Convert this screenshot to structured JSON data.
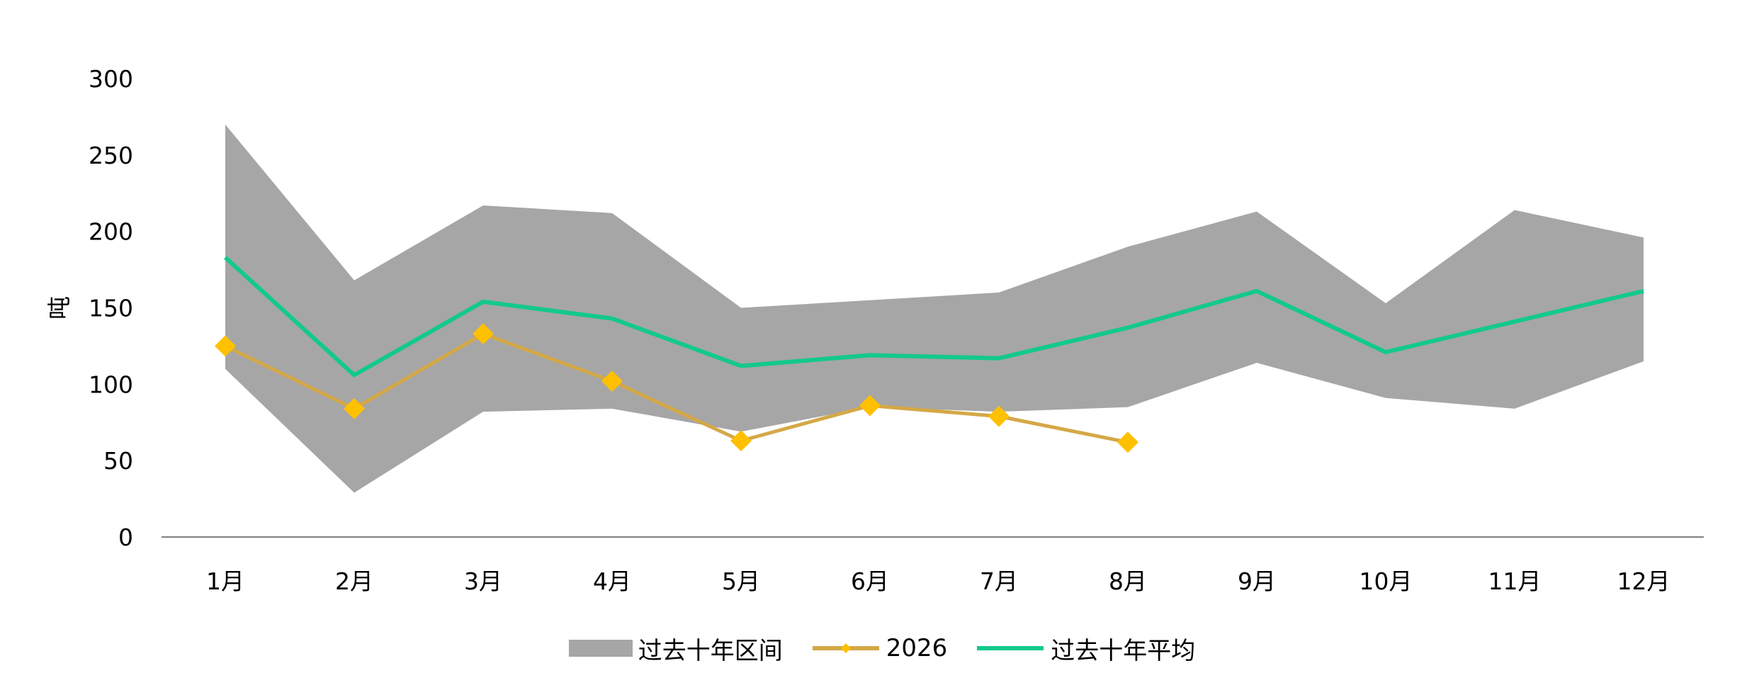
{
  "chart_data": {
    "type": "area",
    "title": "",
    "xlabel": "",
    "ylabel": "吨",
    "ylim": [
      0,
      300
    ],
    "yticks": [
      0,
      50,
      100,
      150,
      200,
      250,
      300
    ],
    "categories": [
      "1月",
      "2月",
      "3月",
      "4月",
      "5月",
      "6月",
      "7月",
      "8月",
      "9月",
      "10月",
      "11月",
      "12月"
    ],
    "series": [
      {
        "name": "过去十年区间",
        "kind": "band",
        "color": "#A6A6A6",
        "upper": [
          270,
          168,
          217,
          212,
          150,
          155,
          160,
          190,
          213,
          153,
          214,
          196
        ],
        "lower": [
          110,
          29,
          82,
          84,
          69,
          85,
          82,
          85,
          114,
          91,
          84,
          115
        ]
      },
      {
        "name": "2026",
        "kind": "line-marker",
        "color": "#D4A847",
        "marker_color": "#FFC000",
        "values": [
          125,
          84,
          133,
          102,
          63,
          86,
          79,
          62,
          null,
          null,
          null,
          null
        ]
      },
      {
        "name": "过去十年平均",
        "kind": "line",
        "color": "#13C98C",
        "values": [
          183,
          106,
          154,
          143,
          112,
          119,
          117,
          137,
          161,
          121,
          141,
          161
        ]
      }
    ],
    "legend_position": "bottom",
    "grid": false
  }
}
